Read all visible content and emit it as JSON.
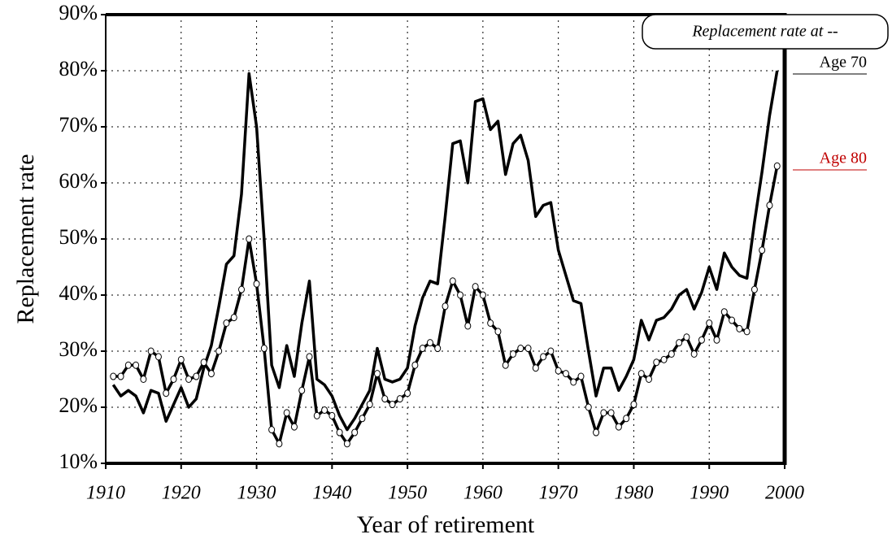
{
  "chart_data": {
    "type": "line",
    "x_label": "Year of retirement",
    "y_label": "Replacement rate",
    "legend_title": "Replacement rate at --",
    "legend": "top-right",
    "grid": true,
    "x": [
      1911,
      1912,
      1913,
      1914,
      1915,
      1916,
      1917,
      1918,
      1919,
      1920,
      1921,
      1922,
      1923,
      1924,
      1925,
      1926,
      1927,
      1928,
      1929,
      1930,
      1931,
      1932,
      1933,
      1934,
      1935,
      1936,
      1937,
      1938,
      1939,
      1940,
      1941,
      1942,
      1943,
      1944,
      1945,
      1946,
      1947,
      1948,
      1949,
      1950,
      1951,
      1952,
      1953,
      1954,
      1955,
      1956,
      1957,
      1958,
      1959,
      1960,
      1961,
      1962,
      1963,
      1964,
      1965,
      1966,
      1967,
      1968,
      1969,
      1970,
      1971,
      1972,
      1973,
      1974,
      1975,
      1976,
      1977,
      1978,
      1979,
      1980,
      1981,
      1982,
      1983,
      1984,
      1985,
      1986,
      1987,
      1988,
      1989,
      1990,
      1991,
      1992,
      1993,
      1994,
      1995,
      1996,
      1997,
      1998,
      1999
    ],
    "series": [
      {
        "name": "Age 70",
        "color": "#000000",
        "markers": false,
        "values": [
          24,
          22,
          23,
          22,
          19,
          23,
          22.5,
          17.5,
          20.5,
          23.5,
          20,
          21.5,
          27,
          31,
          38,
          45.5,
          47,
          58,
          79.5,
          70,
          50,
          27.5,
          23.5,
          31,
          25.5,
          35,
          42.5,
          25,
          24,
          22,
          18.5,
          16,
          18,
          20.5,
          23,
          30.5,
          25,
          24.5,
          25,
          27,
          34.5,
          39.5,
          42.5,
          42,
          54,
          67,
          67.5,
          60,
          74.5,
          75,
          69.5,
          71,
          61.5,
          67,
          68.5,
          64,
          54,
          56,
          56.5,
          48,
          43.5,
          39,
          38.5,
          30,
          22,
          27,
          27,
          23,
          25.5,
          28.5,
          35.5,
          32,
          35.5,
          36,
          37.5,
          40,
          41,
          37.5,
          40.5,
          45,
          41,
          47.5,
          45,
          43.5,
          43,
          53,
          62,
          72,
          80
        ]
      },
      {
        "name": "Age 80",
        "color": "#000000",
        "markers": true,
        "values": [
          25.5,
          25.5,
          27.5,
          27.5,
          25,
          30,
          29,
          22.5,
          25,
          28.5,
          25,
          25.5,
          28,
          26,
          30,
          35,
          36,
          41,
          50,
          42,
          30.5,
          16,
          13.5,
          19,
          16.5,
          23,
          29,
          18.5,
          19.5,
          18.5,
          15.5,
          13.5,
          15.5,
          18,
          20.5,
          26,
          21.5,
          20.5,
          21.5,
          22.5,
          27.5,
          30.5,
          31.5,
          30.5,
          38,
          42.5,
          40,
          34.5,
          41.5,
          40,
          35,
          33.5,
          27.5,
          29.5,
          30.5,
          30.5,
          27,
          29,
          30,
          26.5,
          26,
          24.5,
          25.5,
          20,
          15.5,
          19,
          19,
          16.5,
          18,
          20.5,
          26,
          25,
          28,
          28.5,
          29.5,
          31.5,
          32.5,
          29.5,
          32,
          35,
          32,
          37,
          35.5,
          34,
          33.5,
          41,
          48,
          56,
          63
        ]
      }
    ],
    "xlim": [
      1910,
      2000
    ],
    "xticks": [
      1910,
      1920,
      1930,
      1940,
      1950,
      1960,
      1970,
      1980,
      1990,
      2000
    ],
    "ylim": [
      10,
      90
    ],
    "yticks": [
      {
        "value": 10,
        "label": "10%"
      },
      {
        "value": 20,
        "label": "20%"
      },
      {
        "value": 30,
        "label": "30%"
      },
      {
        "value": 40,
        "label": "40%"
      },
      {
        "value": 50,
        "label": "50%"
      },
      {
        "value": 60,
        "label": "60%"
      },
      {
        "value": 70,
        "label": "70%"
      },
      {
        "value": 80,
        "label": "80%"
      },
      {
        "value": 90,
        "label": "90%"
      }
    ]
  }
}
